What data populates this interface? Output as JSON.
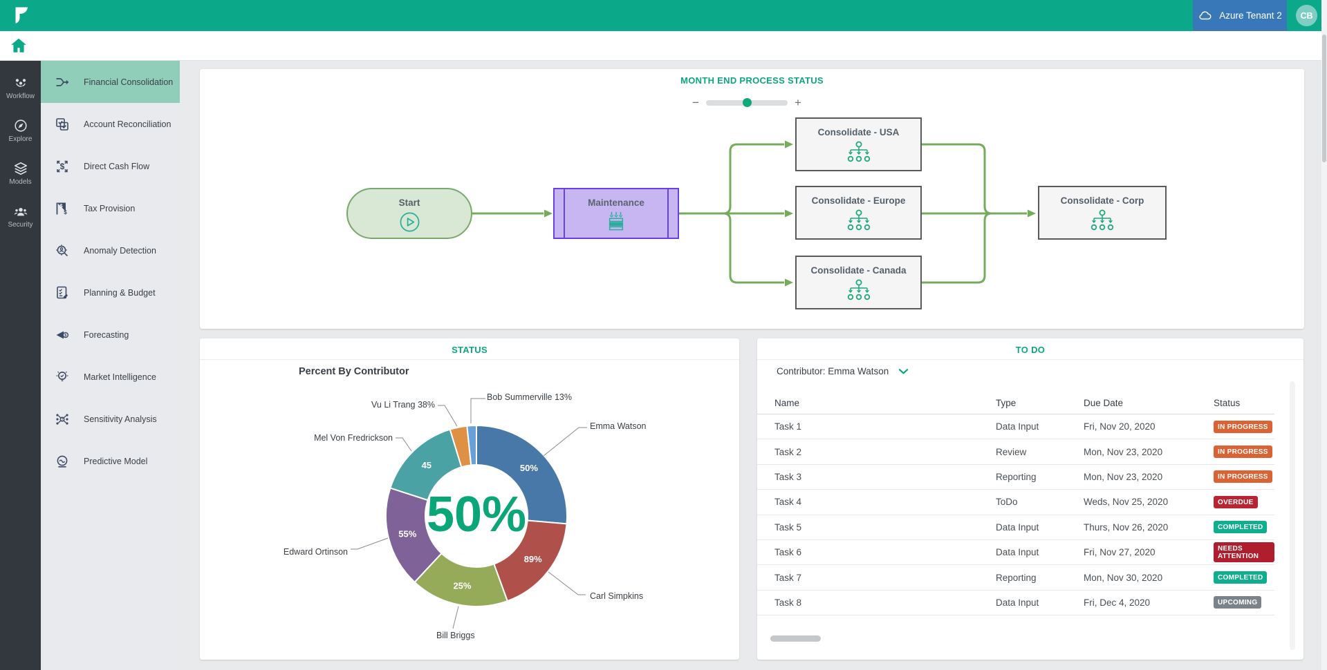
{
  "topbar": {
    "tenant_button": "Azure Tenant 2",
    "avatar_initials": "CB"
  },
  "primary_sidebar": {
    "items": [
      {
        "label": "Workflow"
      },
      {
        "label": "Explore"
      },
      {
        "label": "Models"
      },
      {
        "label": "Security"
      }
    ]
  },
  "secondary_sidebar": {
    "items": [
      {
        "label": "Financial Consolidation",
        "icon": "consolidation",
        "selected": true
      },
      {
        "label": "Account Reconciliation",
        "icon": "reconciliation",
        "selected": false
      },
      {
        "label": "Direct Cash Flow",
        "icon": "cashflow",
        "selected": false
      },
      {
        "label": "Tax Provision",
        "icon": "tax",
        "selected": false
      },
      {
        "label": "Anomaly Detection",
        "icon": "anomaly",
        "selected": false
      },
      {
        "label": "Planning & Budget",
        "icon": "planning",
        "selected": false
      },
      {
        "label": "Forecasting",
        "icon": "forecasting",
        "selected": false
      },
      {
        "label": "Market Intelligence",
        "icon": "market",
        "selected": false
      },
      {
        "label": "Sensitivity Analysis",
        "icon": "sensitivity",
        "selected": false
      },
      {
        "label": "Predictive Model",
        "icon": "predictive",
        "selected": false
      }
    ]
  },
  "process_panel": {
    "title": "MONTH END PROCESS STATUS",
    "zoom_out": "−",
    "zoom_in": "+",
    "nodes": [
      {
        "label": "Start",
        "kind": "start"
      },
      {
        "label": "Maintenance",
        "kind": "active"
      },
      {
        "label": "Consolidate - USA",
        "kind": "pending"
      },
      {
        "label": "Consolidate - Europe",
        "kind": "pending"
      },
      {
        "label": "Consolidate - Canada",
        "kind": "pending"
      },
      {
        "label": "Consolidate - Corp",
        "kind": "pending"
      }
    ]
  },
  "status_panel": {
    "title": "STATUS"
  },
  "chart_data": {
    "type": "pie",
    "title": "Percent By Contributor",
    "center_label": "50%",
    "legend_position": "callouts",
    "segments": [
      {
        "name": "Emma Watson",
        "progress_label": "50%",
        "share_deg": 95,
        "color": "#4878A8",
        "label_on_slice": true
      },
      {
        "name": "Carl Simpkins",
        "progress_label": "89%",
        "share_deg": 65,
        "color": "#B0504A",
        "label_on_slice": true
      },
      {
        "name": "Bill Briggs",
        "progress_label": "25%",
        "share_deg": 63,
        "color": "#96AB5A",
        "label_on_slice": true
      },
      {
        "name": "Edward Ortinson",
        "progress_label": "55%",
        "share_deg": 65,
        "color": "#7F6398",
        "label_on_slice": true
      },
      {
        "name": "Mel Von Fredrickson",
        "progress_label": "45",
        "share_deg": 55,
        "color": "#4AA2A5",
        "label_on_slice": true
      },
      {
        "name": "Vu Li Trang",
        "progress_label": "38%",
        "share_deg": 11,
        "color": "#DE9045",
        "label_on_slice": false
      },
      {
        "name": "Bob Summerville",
        "progress_label": "13%",
        "share_deg": 6,
        "color": "#68A0D8",
        "label_on_slice": false
      }
    ]
  },
  "todo_panel": {
    "title": "TO DO",
    "contributor_label": "Contributor: Emma Watson",
    "columns": [
      "Name",
      "Type",
      "Due Date",
      "Status"
    ],
    "rows": [
      {
        "name": "Task 1",
        "type": "Data Input",
        "due": "Fri, Nov 20, 2020",
        "status": "IN PROGRESS"
      },
      {
        "name": "Task 2",
        "type": "Review",
        "due": "Mon, Nov 23, 2020",
        "status": "IN PROGRESS"
      },
      {
        "name": "Task 3",
        "type": "Reporting",
        "due": "Mon, Nov 23, 2020",
        "status": "IN PROGRESS"
      },
      {
        "name": "Task 4",
        "type": "ToDo",
        "due": "Weds, Nov 25, 2020",
        "status": "OVERDUE"
      },
      {
        "name": "Task 5",
        "type": "Data Input",
        "due": "Thurs, Nov 26, 2020",
        "status": "COMPLETED"
      },
      {
        "name": "Task 6",
        "type": "Data Input",
        "due": "Fri, Nov 27, 2020",
        "status": "NEEDS ATTENTION"
      },
      {
        "name": "Task 7",
        "type": "Reporting",
        "due": "Mon, Nov 30, 2020",
        "status": "COMPLETED"
      },
      {
        "name": "Task 8",
        "type": "Data Input",
        "due": "Fri, Dec 4, 2020",
        "status": "UPCOMING"
      }
    ],
    "status_colors": {
      "IN PROGRESS": "#DB6233",
      "OVERDUE": "#B92433",
      "COMPLETED": "#0FAE8C",
      "NEEDS ATTENTION": "#B01E2E",
      "UPCOMING": "#7A828A"
    }
  },
  "colors": {
    "accent_teal": "#0BA88A",
    "title_teal": "#0BA77E",
    "tenant_blue": "#3878B8",
    "selected_item_bg": "#90CEBA",
    "connector_green": "#74AC5C",
    "center_value_green": "#0BA678"
  }
}
